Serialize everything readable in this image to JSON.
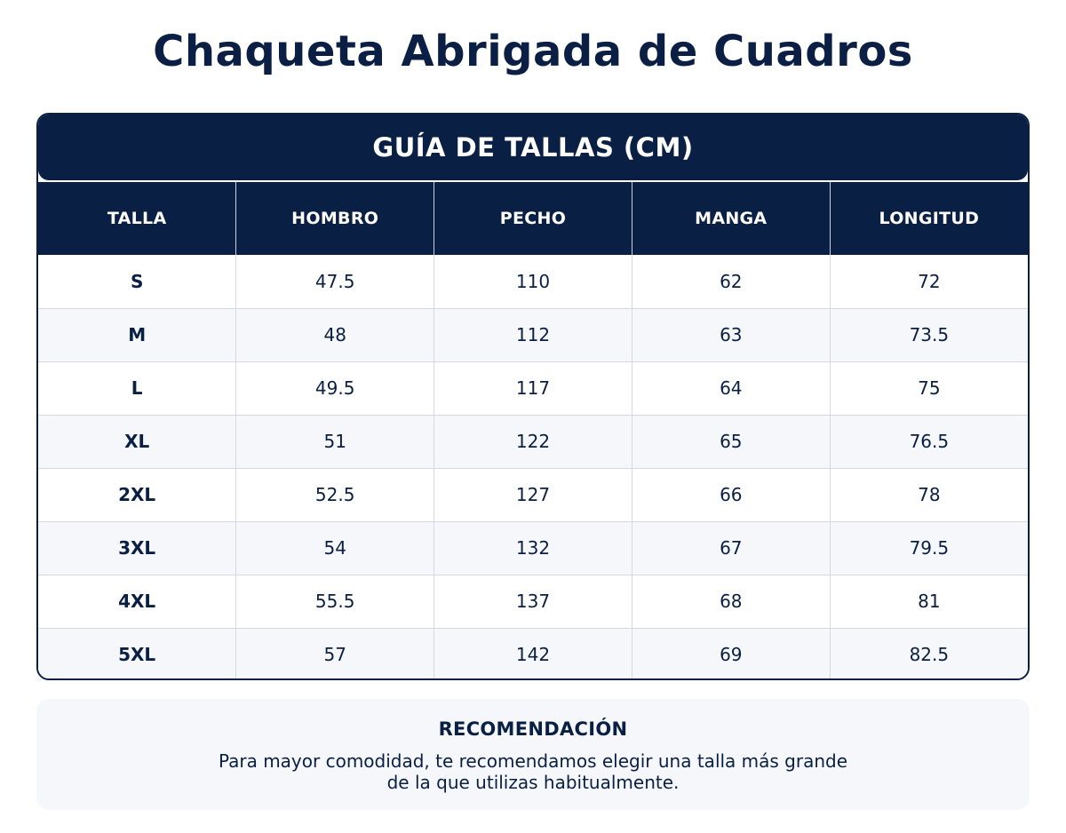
{
  "page": {
    "title": "Chaqueta Abrigada de Cuadros"
  },
  "size_guide": {
    "heading": "GUÍA DE TALLAS (CM)",
    "columns": [
      "TALLA",
      "HOMBRO",
      "PECHO",
      "MANGA",
      "LONGITUD"
    ],
    "rows": [
      [
        "S",
        "47.5",
        "110",
        "62",
        "72"
      ],
      [
        "M",
        "48",
        "112",
        "63",
        "73.5"
      ],
      [
        "L",
        "49.5",
        "117",
        "64",
        "75"
      ],
      [
        "XL",
        "51",
        "122",
        "65",
        "76.5"
      ],
      [
        "2XL",
        "52.5",
        "127",
        "66",
        "78"
      ],
      [
        "3XL",
        "54",
        "132",
        "67",
        "79.5"
      ],
      [
        "4XL",
        "55.5",
        "137",
        "68",
        "81"
      ],
      [
        "5XL",
        "57",
        "142",
        "69",
        "82.5"
      ]
    ]
  },
  "recommendation": {
    "title": "RECOMENDACIÓN",
    "line1": "Para mayor comodidad, te recomendamos elegir una talla más grande",
    "line2": "de la que utilizas habitualmente."
  },
  "colors": {
    "navy": "#0a1f44",
    "row_alt": "#f5f7fa",
    "grid": "#d3d9e2"
  }
}
